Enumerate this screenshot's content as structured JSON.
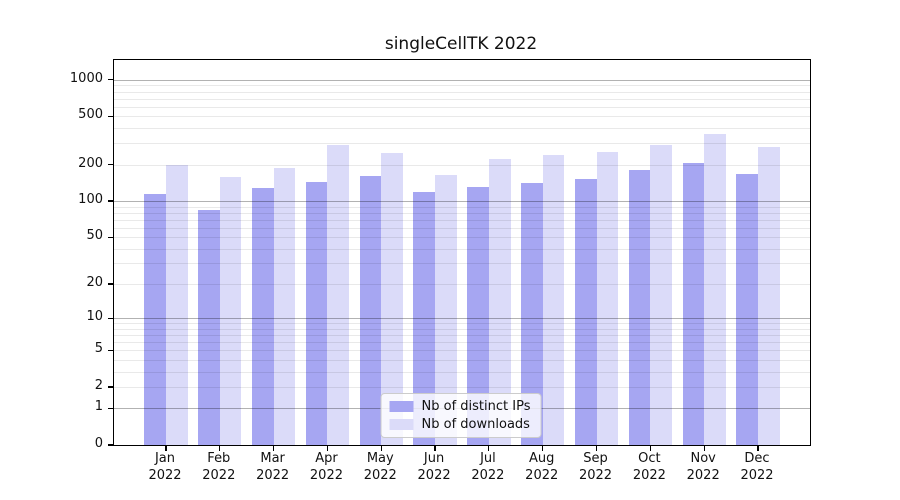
{
  "chart_data": {
    "type": "bar",
    "title": "singleCellTK 2022",
    "categories": [
      {
        "month": "Jan",
        "year": "2022"
      },
      {
        "month": "Feb",
        "year": "2022"
      },
      {
        "month": "Mar",
        "year": "2022"
      },
      {
        "month": "Apr",
        "year": "2022"
      },
      {
        "month": "May",
        "year": "2022"
      },
      {
        "month": "Jun",
        "year": "2022"
      },
      {
        "month": "Jul",
        "year": "2022"
      },
      {
        "month": "Aug",
        "year": "2022"
      },
      {
        "month": "Sep",
        "year": "2022"
      },
      {
        "month": "Oct",
        "year": "2022"
      },
      {
        "month": "Nov",
        "year": "2022"
      },
      {
        "month": "Dec",
        "year": "2022"
      }
    ],
    "series": [
      {
        "name": "Nb of distinct IPs",
        "color": "#a6a6f2",
        "values": [
          115,
          85,
          128,
          145,
          160,
          119,
          130,
          142,
          152,
          180,
          207,
          167
        ]
      },
      {
        "name": "Nb of downloads",
        "color": "#dbdbf9",
        "values": [
          197,
          159,
          187,
          291,
          250,
          163,
          222,
          242,
          256,
          291,
          360,
          281
        ]
      }
    ],
    "yscale": "log1p",
    "y_ticks": [
      0,
      1,
      2,
      5,
      10,
      20,
      50,
      100,
      200,
      500,
      1000
    ],
    "major_grid_values": [
      1,
      10,
      100,
      1000
    ],
    "ylim": [
      0,
      1455
    ],
    "xlabel": "",
    "ylabel": "",
    "legend_position": "lower center",
    "grid": true
  },
  "colors": {
    "distinct_ips_bar": "#a6a6f2",
    "downloads_bar": "#dbdbf9",
    "frame": "#000000",
    "text": "#111111",
    "legend_border": "#cccccc"
  }
}
